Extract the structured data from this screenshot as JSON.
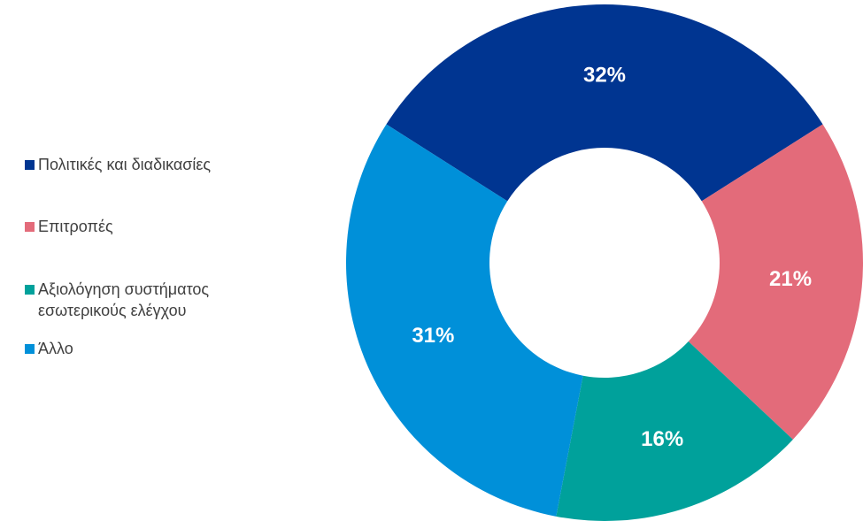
{
  "chart_data": {
    "type": "donut",
    "categories": [
      "Πολιτικές και διαδικασίες",
      "Επιτροπές",
      "Αξιολόγηση συστήματος εσωτερικούς ελέγχου",
      "Άλλο"
    ],
    "values": [
      32,
      21,
      16,
      31
    ],
    "value_labels": [
      "32%",
      "21%",
      "16%",
      "31%"
    ],
    "colors": [
      "#003591",
      "#e36b7a",
      "#00a19b",
      "#0090d9"
    ],
    "legend": "left"
  }
}
